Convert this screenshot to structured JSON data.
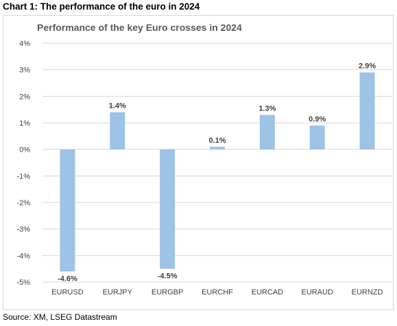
{
  "header": {
    "title": "Chart 1: The performance of the euro in 2024"
  },
  "footer": {
    "source": "Source: XM, LSEG Datastream"
  },
  "chart_data": {
    "type": "bar",
    "title": "Performance of the key Euro crosses in 2024",
    "categories": [
      "EURUSD",
      "EURJPY",
      "EURGBP",
      "EURCHF",
      "EURCAD",
      "EURAUD",
      "EURNZD"
    ],
    "values": [
      -4.6,
      1.4,
      -4.5,
      0.1,
      1.3,
      0.9,
      2.9
    ],
    "data_labels": [
      "-4.6%",
      "1.4%",
      "-4.5%",
      "0.1%",
      "1.3%",
      "0.9%",
      "2.9%"
    ],
    "y_ticks": [
      4,
      3,
      2,
      1,
      0,
      -1,
      -2,
      -3,
      -4,
      -5
    ],
    "y_tick_labels": [
      "4%",
      "3%",
      "2%",
      "1%",
      "0%",
      "-1%",
      "-2%",
      "-3%",
      "-4%",
      "-5%"
    ],
    "ylim": [
      -5,
      4
    ],
    "grid": true,
    "bar_color": "#9dc3e6",
    "grid_color": "#d9d9d9"
  }
}
